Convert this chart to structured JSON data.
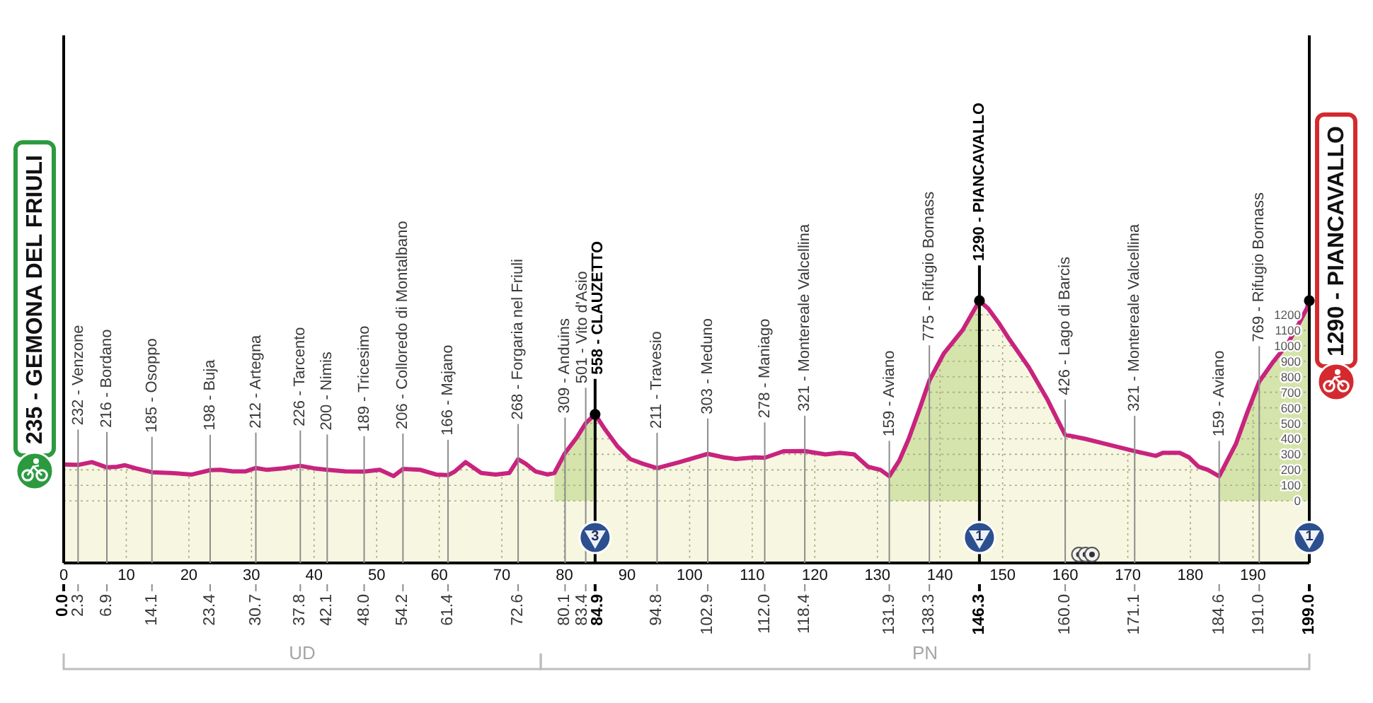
{
  "chart_data": {
    "type": "area",
    "series": [
      {
        "type": "line",
        "color": "#c8237e",
        "x": [
          0,
          2.3,
          4.5,
          6.9,
          8.5,
          9.8,
          11.5,
          14.1,
          17,
          20.5,
          23.4,
          25,
          27,
          29,
          30.7,
          32.5,
          35,
          37.8,
          40,
          42.1,
          45,
          48,
          50.5,
          52.7,
          54.2,
          57,
          59.5,
          61.4,
          62.5,
          64.2,
          66.7,
          69,
          71.2,
          72.6,
          73.8,
          75.4,
          77.3,
          78.4,
          80.1,
          82,
          83.4,
          84.9,
          86.5,
          88.5,
          90.5,
          92.5,
          94.8,
          98.4,
          102.9,
          105.5,
          107.4,
          110.4,
          112,
          115,
          118.4,
          121.7,
          124,
          126.3,
          128.5,
          130.5,
          131.9,
          133.5,
          135,
          136.8,
          138.3,
          140.6,
          143.6,
          146.3,
          147.7,
          149.5,
          151.1,
          154.2,
          157.2,
          158.8,
          160,
          163.2,
          166.2,
          171.1,
          174.5,
          175.6,
          178.3,
          179.8,
          181.3,
          182.8,
          184.6,
          187.3,
          189,
          191,
          193.3,
          195.5,
          197.3,
          198.6,
          199
        ],
        "values": [
          235,
          232,
          250,
          216,
          220,
          230,
          210,
          185,
          180,
          170,
          198,
          200,
          190,
          190,
          212,
          200,
          210,
          226,
          210,
          200,
          190,
          189,
          200,
          160,
          206,
          200,
          170,
          166,
          190,
          250,
          180,
          170,
          180,
          268,
          240,
          190,
          170,
          180,
          309,
          410,
          501,
          558,
          460,
          350,
          270,
          240,
          211,
          250,
          303,
          280,
          270,
          280,
          278,
          320,
          321,
          300,
          310,
          300,
          220,
          200,
          159,
          260,
          400,
          600,
          775,
          950,
          1100,
          1290,
          1240,
          1140,
          1040,
          860,
          650,
          520,
          426,
          400,
          370,
          321,
          290,
          310,
          310,
          280,
          220,
          200,
          159,
          370,
          560,
          769,
          900,
          1010,
          1140,
          1240,
          1290
        ]
      },
      {
        "color": "#f7f7e1",
        "x": [
          0,
          2.3,
          4.5,
          6.9,
          8.5,
          9.8,
          11.5,
          14.1,
          17,
          20.5,
          23.4,
          25,
          27,
          29,
          30.7,
          32.5,
          35,
          37.8,
          40,
          42.1,
          45,
          48,
          50.5,
          52.7,
          54.2,
          57,
          59.5,
          61.4,
          62.5,
          64.2,
          66.7,
          69,
          71.2,
          72.6,
          73.8,
          75.4,
          77.3,
          78.4
        ],
        "values": [
          235,
          232,
          250,
          216,
          220,
          230,
          210,
          185,
          180,
          170,
          198,
          200,
          190,
          190,
          212,
          200,
          210,
          226,
          210,
          200,
          190,
          189,
          200,
          160,
          206,
          200,
          170,
          166,
          190,
          250,
          180,
          170,
          180,
          268,
          240,
          190,
          170,
          180
        ]
      },
      {
        "color": "#d4e4aa",
        "x": [
          78.4,
          80.1,
          82,
          83.4,
          84.9
        ],
        "values": [
          180,
          309,
          410,
          501,
          558
        ]
      },
      {
        "color": "#f7f7e1",
        "x": [
          84.9,
          86.5,
          88.5,
          90.5,
          92.5,
          94.8,
          98.4,
          102.9,
          105.5,
          107.4,
          110.4,
          112,
          115,
          118.4,
          121.7,
          124,
          126.3,
          128.5,
          130.5,
          131.9
        ],
        "values": [
          558,
          460,
          350,
          270,
          240,
          211,
          250,
          303,
          280,
          270,
          280,
          278,
          320,
          321,
          300,
          310,
          300,
          220,
          200,
          159
        ]
      },
      {
        "color": "#d4e4aa",
        "x": [
          131.9,
          133.5,
          135,
          136.8,
          138.3,
          140.6,
          143.6,
          146.3
        ],
        "values": [
          159,
          260,
          400,
          600,
          775,
          950,
          1100,
          1290
        ]
      },
      {
        "color": "#f7f7e1",
        "x": [
          146.3,
          147.7,
          149.5,
          151.1,
          154.2,
          157.2,
          158.8,
          160,
          163.2,
          166.2,
          171.1,
          174.5,
          175.6,
          178.3,
          179.8,
          181.3,
          182.8,
          184.6
        ],
        "values": [
          1290,
          1240,
          1140,
          1040,
          860,
          650,
          520,
          426,
          400,
          370,
          321,
          290,
          310,
          310,
          280,
          220,
          200,
          159
        ]
      },
      {
        "color": "#d4e4aa",
        "x": [
          184.6,
          187.3,
          189,
          191,
          193.3,
          195.5,
          197.3,
          198.6,
          199
        ],
        "values": [
          159,
          370,
          560,
          769,
          900,
          1010,
          1140,
          1240,
          1290
        ]
      }
    ],
    "xlim": [
      0,
      199
    ],
    "xticks": [
      0,
      10,
      20,
      30,
      40,
      50,
      60,
      70,
      80,
      90,
      100,
      110,
      120,
      130,
      140,
      150,
      160,
      170,
      180,
      190
    ],
    "x2lim": [
      0,
      199
    ],
    "x2ticks": [
      {
        "value": 0,
        "label": "0.0"
      },
      2.3,
      6.9,
      14.1,
      23.4,
      30.7,
      37.8,
      42.1,
      {
        "value": 48,
        "label": "48.0"
      },
      54.2,
      61.4,
      72.6,
      80.1,
      83.4,
      84.9,
      94.8,
      102.9,
      {
        "value": 112,
        "label": "112.0"
      },
      118.4,
      131.9,
      138.3,
      146.3,
      {
        "value": 160,
        "label": "160.0"
      },
      171.1,
      184.6,
      {
        "value": 191,
        "label": "191.0"
      },
      {
        "value": 199,
        "label": "199.0"
      }
    ],
    "ylim": [
      -400,
      3000
    ],
    "yticks": [
      0,
      100,
      200,
      300,
      400,
      500,
      600,
      700,
      800,
      900,
      1000,
      1100,
      1200
    ],
    "grid": true,
    "bands": [
      {
        "axis": "y",
        "from": -400,
        "to": 0,
        "color": "#f7f7e1"
      }
    ],
    "ref_lines": [
      {
        "axis": "x",
        "value": 0,
        "label": "235 - GEMONA DEL FRIULI",
        "color": "#000000"
      },
      {
        "axis": "x",
        "value": 2.3,
        "label": "232 - Venzone",
        "color": "#8c8c8c"
      },
      {
        "axis": "x",
        "value": 6.9,
        "label": "216 - Bordano",
        "color": "#8c8c8c"
      },
      {
        "axis": "x",
        "value": 14.1,
        "label": "185 - Osoppo",
        "color": "#8c8c8c"
      },
      {
        "axis": "x",
        "value": 23.4,
        "label": "198 - Buja",
        "color": "#8c8c8c"
      },
      {
        "axis": "x",
        "value": 30.7,
        "label": "212 - Artegna",
        "color": "#8c8c8c"
      },
      {
        "axis": "x",
        "value": 37.8,
        "label": "226 - Tarcento",
        "color": "#8c8c8c"
      },
      {
        "axis": "x",
        "value": 42.1,
        "label": "200 - Nimis",
        "color": "#8c8c8c"
      },
      {
        "axis": "x",
        "value": 48,
        "label": "189 - Tricesimo",
        "color": "#8c8c8c"
      },
      {
        "axis": "x",
        "value": 54.2,
        "label": "206 - Colloredo di Montalbano",
        "color": "#8c8c8c"
      },
      {
        "axis": "x",
        "value": 61.4,
        "label": "166 - Majano",
        "color": "#8c8c8c"
      },
      {
        "axis": "x",
        "value": 72.6,
        "label": "268 - Forgaria nel Friuli",
        "color": "#8c8c8c"
      },
      {
        "axis": "x",
        "value": 80.1,
        "label": "309 - Anduins",
        "color": "#8c8c8c"
      },
      {
        "axis": "x",
        "value": 83.4,
        "label": "501 - Vito d'Asio",
        "color": "#8c8c8c"
      },
      {
        "axis": "x",
        "value": 84.9,
        "label": "558 - CLAUZETTO",
        "color": "#000000"
      },
      {
        "axis": "x",
        "value": 94.8,
        "label": "211 - Travesio",
        "color": "#8c8c8c"
      },
      {
        "axis": "x",
        "value": 102.9,
        "label": "303 - Meduno",
        "color": "#8c8c8c"
      },
      {
        "axis": "x",
        "value": 112,
        "label": "278 - Maniago",
        "color": "#8c8c8c"
      },
      {
        "axis": "x",
        "value": 118.4,
        "label": "321 - Montereale Valcellina",
        "color": "#8c8c8c"
      },
      {
        "axis": "x",
        "value": 131.9,
        "label": "159 - Aviano",
        "color": "#8c8c8c"
      },
      {
        "axis": "x",
        "value": 138.3,
        "label": "775 - Rifugio Bornass",
        "color": "#8c8c8c"
      },
      {
        "axis": "x",
        "value": 146.3,
        "label": "1290 - PIANCAVALLO",
        "color": "#000000"
      },
      {
        "axis": "x",
        "value": 160,
        "label": "426 - Lago di Barcis",
        "color": "#8c8c8c"
      },
      {
        "axis": "x",
        "value": 171.1,
        "label": "321 - Montereale Valcellina",
        "color": "#8c8c8c"
      },
      {
        "axis": "x",
        "value": 184.6,
        "label": "159 - Aviano",
        "color": "#8c8c8c"
      },
      {
        "axis": "x",
        "value": 191,
        "label": "769 - Rifugio Bornass",
        "color": "#8c8c8c"
      }
    ],
    "annotations": [
      {
        "text": "3",
        "x": 84.9
      },
      {
        "text": "1",
        "x": 146.3
      },
      {
        "text": "1",
        "x": 199
      },
      "UD",
      "PN",
      {
        "text": "1290 - PIANCAVALLO",
        "x": 199,
        "y": 1290
      }
    ]
  }
}
